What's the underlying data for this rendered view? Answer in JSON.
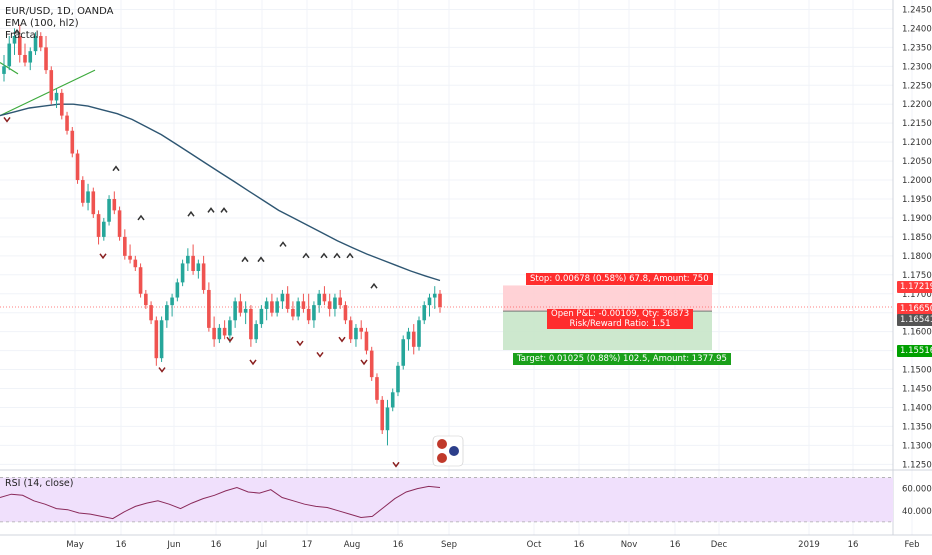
{
  "legend": {
    "symbol": "EUR/USD, 1D, OANDA",
    "ema": "EMA (100, hl2)",
    "fractal": "Fractal"
  },
  "rsi": {
    "label": "RSI (14, close)",
    "ticks": [
      "60.0000",
      "40.0000"
    ]
  },
  "position": {
    "stop": "Stop: 0.00678 (0.58%) 67.8, Amount: 750",
    "open_pl": "Open P&L: -0.00109, Qty: 36873",
    "risk_reward": "Risk/Reward Ratio: 1.51",
    "target": "Target: 0.01025 (0.88%) 102.5, Amount: 1377.95"
  },
  "price_tags": [
    {
      "value": "1.17219",
      "color": "#ff3b3b"
    },
    {
      "value": "1.16650",
      "color": "#ff3b3b"
    },
    {
      "value": "1.16541",
      "color": "#555555"
    },
    {
      "value": "1.15516",
      "color": "#00a000"
    }
  ],
  "colors": {
    "up": "#26a69a",
    "down": "#ef5350",
    "ema": "#2e5672",
    "trendline": "#3daa3d",
    "stop_zone": "#ffcdd2",
    "target_zone": "#c8e6c9",
    "rsi_band": "#f0e0fc",
    "rsi_line": "#8a2a5a"
  },
  "chart_data": {
    "type": "candlestick",
    "title": "EUR/USD, 1D, OANDA",
    "y_axis_ticks": [
      "1.24500",
      "1.24000",
      "1.23500",
      "1.23000",
      "1.22500",
      "1.22000",
      "1.21500",
      "1.21000",
      "1.20500",
      "1.20000",
      "1.19500",
      "1.19000",
      "1.18500",
      "1.18000",
      "1.17500",
      "1.17000",
      "1.16500",
      "1.16000",
      "1.15500",
      "1.15000",
      "1.14500",
      "1.14000",
      "1.13500",
      "1.13000",
      "1.12500"
    ],
    "ylim": [
      1.1235,
      1.2475
    ],
    "x_axis_labels": [
      "May",
      "16",
      "Jun",
      "16",
      "Jul",
      "17",
      "Aug",
      "16",
      "Sep",
      "Oct",
      "16",
      "Nov",
      "16",
      "Dec",
      "2019",
      "16",
      "Feb"
    ],
    "candles": [
      {
        "o": 1.228,
        "h": 1.233,
        "l": 1.226,
        "c": 1.23
      },
      {
        "o": 1.23,
        "h": 1.238,
        "l": 1.229,
        "c": 1.236
      },
      {
        "o": 1.236,
        "h": 1.24,
        "l": 1.233,
        "c": 1.238
      },
      {
        "o": 1.238,
        "h": 1.241,
        "l": 1.231,
        "c": 1.233
      },
      {
        "o": 1.233,
        "h": 1.236,
        "l": 1.23,
        "c": 1.231
      },
      {
        "o": 1.231,
        "h": 1.235,
        "l": 1.229,
        "c": 1.234
      },
      {
        "o": 1.234,
        "h": 1.239,
        "l": 1.233,
        "c": 1.238
      },
      {
        "o": 1.238,
        "h": 1.239,
        "l": 1.234,
        "c": 1.235
      },
      {
        "o": 1.235,
        "h": 1.238,
        "l": 1.228,
        "c": 1.229
      },
      {
        "o": 1.229,
        "h": 1.23,
        "l": 1.22,
        "c": 1.221
      },
      {
        "o": 1.221,
        "h": 1.224,
        "l": 1.219,
        "c": 1.223
      },
      {
        "o": 1.223,
        "h": 1.224,
        "l": 1.216,
        "c": 1.217
      },
      {
        "o": 1.217,
        "h": 1.218,
        "l": 1.212,
        "c": 1.213
      },
      {
        "o": 1.213,
        "h": 1.214,
        "l": 1.206,
        "c": 1.207
      },
      {
        "o": 1.207,
        "h": 1.208,
        "l": 1.199,
        "c": 1.2
      },
      {
        "o": 1.2,
        "h": 1.201,
        "l": 1.193,
        "c": 1.194
      },
      {
        "o": 1.194,
        "h": 1.199,
        "l": 1.192,
        "c": 1.197
      },
      {
        "o": 1.197,
        "h": 1.198,
        "l": 1.19,
        "c": 1.191
      },
      {
        "o": 1.191,
        "h": 1.192,
        "l": 1.183,
        "c": 1.185
      },
      {
        "o": 1.185,
        "h": 1.19,
        "l": 1.184,
        "c": 1.189
      },
      {
        "o": 1.189,
        "h": 1.196,
        "l": 1.188,
        "c": 1.195
      },
      {
        "o": 1.195,
        "h": 1.197,
        "l": 1.191,
        "c": 1.192
      },
      {
        "o": 1.192,
        "h": 1.193,
        "l": 1.184,
        "c": 1.185
      },
      {
        "o": 1.185,
        "h": 1.187,
        "l": 1.179,
        "c": 1.18
      },
      {
        "o": 1.18,
        "h": 1.183,
        "l": 1.178,
        "c": 1.179
      },
      {
        "o": 1.179,
        "h": 1.18,
        "l": 1.176,
        "c": 1.177
      },
      {
        "o": 1.177,
        "h": 1.178,
        "l": 1.169,
        "c": 1.17
      },
      {
        "o": 1.17,
        "h": 1.171,
        "l": 1.166,
        "c": 1.167
      },
      {
        "o": 1.167,
        "h": 1.168,
        "l": 1.162,
        "c": 1.163
      },
      {
        "o": 1.163,
        "h": 1.164,
        "l": 1.151,
        "c": 1.153
      },
      {
        "o": 1.153,
        "h": 1.164,
        "l": 1.152,
        "c": 1.163
      },
      {
        "o": 1.163,
        "h": 1.168,
        "l": 1.161,
        "c": 1.167
      },
      {
        "o": 1.167,
        "h": 1.17,
        "l": 1.164,
        "c": 1.169
      },
      {
        "o": 1.169,
        "h": 1.174,
        "l": 1.168,
        "c": 1.173
      },
      {
        "o": 1.173,
        "h": 1.179,
        "l": 1.172,
        "c": 1.178
      },
      {
        "o": 1.178,
        "h": 1.182,
        "l": 1.176,
        "c": 1.18
      },
      {
        "o": 1.18,
        "h": 1.183,
        "l": 1.175,
        "c": 1.176
      },
      {
        "o": 1.176,
        "h": 1.179,
        "l": 1.174,
        "c": 1.178
      },
      {
        "o": 1.178,
        "h": 1.18,
        "l": 1.17,
        "c": 1.171
      },
      {
        "o": 1.171,
        "h": 1.173,
        "l": 1.16,
        "c": 1.161
      },
      {
        "o": 1.161,
        "h": 1.164,
        "l": 1.156,
        "c": 1.158
      },
      {
        "o": 1.158,
        "h": 1.162,
        "l": 1.157,
        "c": 1.161
      },
      {
        "o": 1.161,
        "h": 1.163,
        "l": 1.158,
        "c": 1.159
      },
      {
        "o": 1.159,
        "h": 1.164,
        "l": 1.157,
        "c": 1.163
      },
      {
        "o": 1.163,
        "h": 1.169,
        "l": 1.161,
        "c": 1.168
      },
      {
        "o": 1.168,
        "h": 1.17,
        "l": 1.164,
        "c": 1.165
      },
      {
        "o": 1.165,
        "h": 1.168,
        "l": 1.162,
        "c": 1.166
      },
      {
        "o": 1.166,
        "h": 1.167,
        "l": 1.156,
        "c": 1.158
      },
      {
        "o": 1.158,
        "h": 1.163,
        "l": 1.157,
        "c": 1.162
      },
      {
        "o": 1.162,
        "h": 1.167,
        "l": 1.161,
        "c": 1.166
      },
      {
        "o": 1.166,
        "h": 1.169,
        "l": 1.163,
        "c": 1.168
      },
      {
        "o": 1.168,
        "h": 1.17,
        "l": 1.164,
        "c": 1.165
      },
      {
        "o": 1.165,
        "h": 1.169,
        "l": 1.164,
        "c": 1.168
      },
      {
        "o": 1.168,
        "h": 1.171,
        "l": 1.166,
        "c": 1.17
      },
      {
        "o": 1.17,
        "h": 1.172,
        "l": 1.165,
        "c": 1.166
      },
      {
        "o": 1.166,
        "h": 1.168,
        "l": 1.163,
        "c": 1.164
      },
      {
        "o": 1.164,
        "h": 1.169,
        "l": 1.163,
        "c": 1.168
      },
      {
        "o": 1.168,
        "h": 1.17,
        "l": 1.165,
        "c": 1.166
      },
      {
        "o": 1.166,
        "h": 1.17,
        "l": 1.162,
        "c": 1.163
      },
      {
        "o": 1.163,
        "h": 1.168,
        "l": 1.161,
        "c": 1.167
      },
      {
        "o": 1.167,
        "h": 1.171,
        "l": 1.165,
        "c": 1.17
      },
      {
        "o": 1.17,
        "h": 1.172,
        "l": 1.167,
        "c": 1.168
      },
      {
        "o": 1.168,
        "h": 1.17,
        "l": 1.164,
        "c": 1.166
      },
      {
        "o": 1.166,
        "h": 1.17,
        "l": 1.164,
        "c": 1.169
      },
      {
        "o": 1.169,
        "h": 1.171,
        "l": 1.166,
        "c": 1.167
      },
      {
        "o": 1.167,
        "h": 1.168,
        "l": 1.162,
        "c": 1.163
      },
      {
        "o": 1.163,
        "h": 1.164,
        "l": 1.157,
        "c": 1.158
      },
      {
        "o": 1.158,
        "h": 1.162,
        "l": 1.156,
        "c": 1.161
      },
      {
        "o": 1.161,
        "h": 1.163,
        "l": 1.158,
        "c": 1.16
      },
      {
        "o": 1.16,
        "h": 1.161,
        "l": 1.154,
        "c": 1.155
      },
      {
        "o": 1.155,
        "h": 1.156,
        "l": 1.147,
        "c": 1.148
      },
      {
        "o": 1.148,
        "h": 1.149,
        "l": 1.141,
        "c": 1.142
      },
      {
        "o": 1.142,
        "h": 1.143,
        "l": 1.133,
        "c": 1.134
      },
      {
        "o": 1.134,
        "h": 1.142,
        "l": 1.13,
        "c": 1.14
      },
      {
        "o": 1.14,
        "h": 1.145,
        "l": 1.139,
        "c": 1.144
      },
      {
        "o": 1.144,
        "h": 1.152,
        "l": 1.143,
        "c": 1.151
      },
      {
        "o": 1.151,
        "h": 1.159,
        "l": 1.15,
        "c": 1.158
      },
      {
        "o": 1.158,
        "h": 1.161,
        "l": 1.155,
        "c": 1.16
      },
      {
        "o": 1.16,
        "h": 1.162,
        "l": 1.154,
        "c": 1.156
      },
      {
        "o": 1.156,
        "h": 1.164,
        "l": 1.155,
        "c": 1.163
      },
      {
        "o": 1.163,
        "h": 1.168,
        "l": 1.162,
        "c": 1.167
      },
      {
        "o": 1.167,
        "h": 1.17,
        "l": 1.164,
        "c": 1.169
      },
      {
        "o": 1.169,
        "h": 1.172,
        "l": 1.166,
        "c": 1.17
      },
      {
        "o": 1.17,
        "h": 1.171,
        "l": 1.165,
        "c": 1.1665
      }
    ],
    "ema": [
      1.217,
      1.218,
      1.219,
      1.2195,
      1.22,
      1.22,
      1.2195,
      1.2185,
      1.2175,
      1.216,
      1.214,
      1.212,
      1.2095,
      1.207,
      1.2045,
      1.202,
      1.1995,
      1.197,
      1.1945,
      1.192,
      1.19,
      1.188,
      1.186,
      1.184,
      1.1822,
      1.1805,
      1.179,
      1.1775,
      1.176,
      1.1747,
      1.1735
    ],
    "rsi": [
      52,
      55,
      54,
      49,
      46,
      42,
      41,
      38,
      37,
      35,
      33,
      39,
      44,
      47,
      49,
      46,
      42,
      47,
      51,
      54,
      58,
      61,
      57,
      56,
      59,
      52,
      49,
      46,
      44,
      43,
      40,
      37,
      34,
      35,
      43,
      51,
      57,
      60,
      62,
      61
    ],
    "rsi_band": [
      30,
      70
    ]
  }
}
